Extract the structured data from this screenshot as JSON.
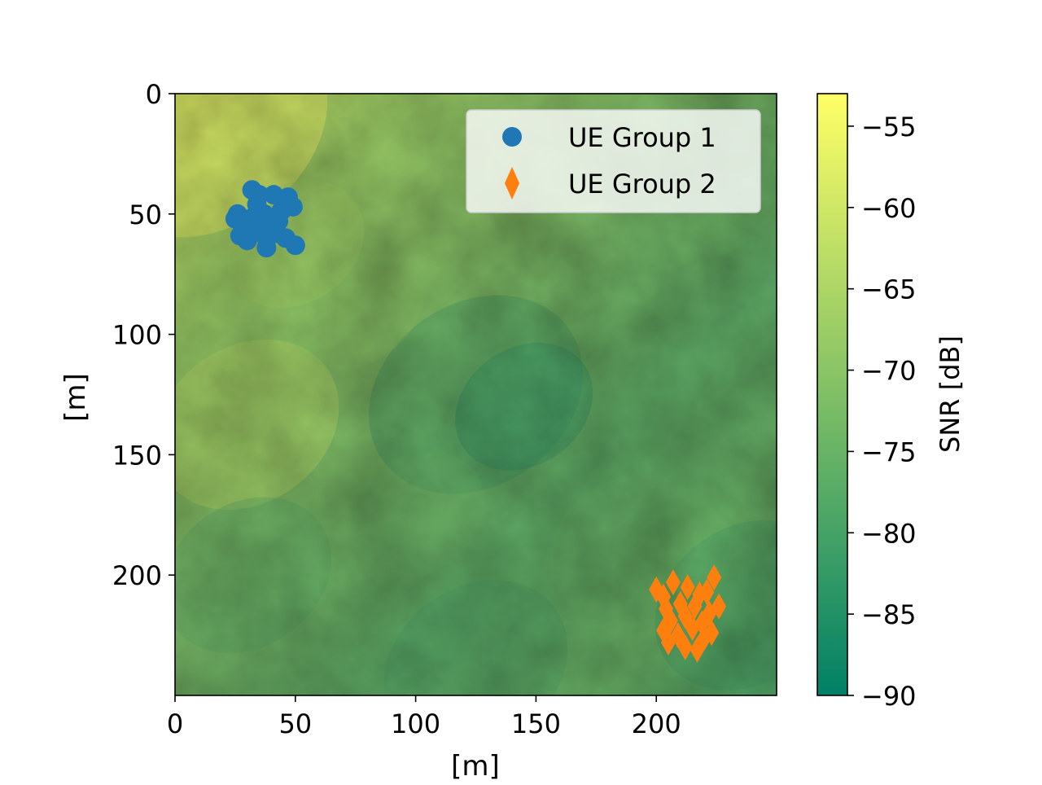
{
  "chart_data": {
    "type": "heatmap",
    "title": "",
    "xlabel": "[m]",
    "ylabel": "[m]",
    "xlim": [
      0,
      250
    ],
    "ylim": [
      250,
      0
    ],
    "y_axis_inverted": true,
    "x_ticks": [
      0,
      50,
      100,
      150,
      200
    ],
    "y_ticks": [
      0,
      50,
      100,
      150,
      200
    ],
    "grid": false,
    "legend_placement": "upper right",
    "heatmap": {
      "description_of_field": "SNR map",
      "colorbar_label": "SNR [dB]",
      "colormap": "summer",
      "vmin": -90,
      "vmax": -53,
      "colorbar_ticks": [
        -55,
        -60,
        -65,
        -70,
        -75,
        -80,
        -85,
        -90
      ],
      "colorbar_tick_labels": [
        "−55",
        "−60",
        "−65",
        "−70",
        "−75",
        "−80",
        "−85",
        "−90"
      ]
    },
    "series": [
      {
        "name": "UE Group 1",
        "marker": "circle",
        "color": "#1f77b4",
        "points": [
          [
            32,
            40
          ],
          [
            35,
            42
          ],
          [
            41,
            42
          ],
          [
            47,
            43
          ],
          [
            49,
            47
          ],
          [
            26,
            50
          ],
          [
            25,
            52
          ],
          [
            31,
            52
          ],
          [
            37,
            50
          ],
          [
            44,
            49
          ],
          [
            39,
            54
          ],
          [
            33,
            56
          ],
          [
            36,
            58
          ],
          [
            30,
            57
          ],
          [
            27,
            59
          ],
          [
            30,
            61
          ],
          [
            42,
            58
          ],
          [
            46,
            60
          ],
          [
            50,
            63
          ],
          [
            38,
            64
          ],
          [
            34,
            46
          ],
          [
            43,
            53
          ]
        ]
      },
      {
        "name": "UE Group 2",
        "marker": "diamond",
        "color": "#ff7f0e",
        "points": [
          [
            200,
            206
          ],
          [
            203,
            209
          ],
          [
            207,
            203
          ],
          [
            213,
            205
          ],
          [
            218,
            208
          ],
          [
            224,
            201
          ],
          [
            221,
            207
          ],
          [
            204,
            214
          ],
          [
            210,
            212
          ],
          [
            216,
            213
          ],
          [
            222,
            216
          ],
          [
            226,
            213
          ],
          [
            206,
            219
          ],
          [
            212,
            217
          ],
          [
            219,
            220
          ],
          [
            223,
            224
          ],
          [
            203,
            223
          ],
          [
            209,
            225
          ],
          [
            215,
            222
          ],
          [
            205,
            228
          ],
          [
            212,
            230
          ],
          [
            220,
            226
          ],
          [
            217,
            231
          ]
        ]
      }
    ]
  }
}
